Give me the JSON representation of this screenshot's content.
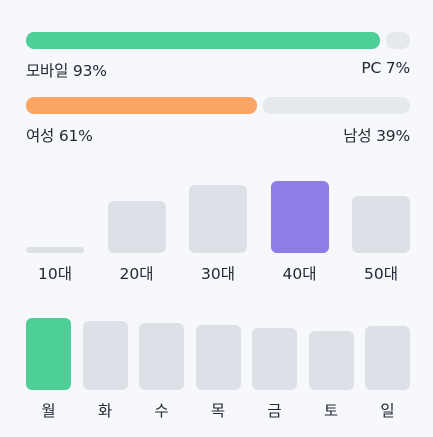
{
  "colors": {
    "device_mobile": "#4fcf98",
    "gender_female": "#fba664",
    "track": "#e5e8ed",
    "inactive_bar": "#dde1e7",
    "age_highlight": "#8e7de6",
    "weekday_highlight": "#4fcf98"
  },
  "device_split": {
    "left_label": "모바일 93%",
    "right_label": "PC 7%",
    "left_share": 0.93
  },
  "gender_split": {
    "left_label": "여성 61%",
    "right_label": "남성 39%",
    "left_share": 0.61
  },
  "chart_data": [
    {
      "type": "bar",
      "categories": [
        "10대",
        "20대",
        "30대",
        "40대",
        "50대"
      ],
      "values": [
        8,
        68,
        90,
        95,
        75
      ],
      "highlight_index": 3
    },
    {
      "type": "bar",
      "categories": [
        "월",
        "화",
        "수",
        "목",
        "금",
        "토",
        "일"
      ],
      "values": [
        97,
        93,
        90,
        87,
        83,
        80,
        86
      ],
      "highlight_index": 0
    }
  ]
}
